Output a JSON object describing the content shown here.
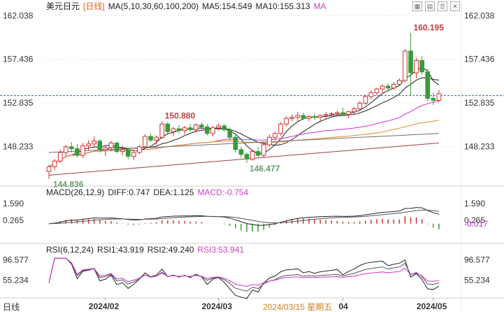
{
  "header": {
    "title": "美元日元",
    "period": "[日线]",
    "ma_params": "MA(5,10,30,60,100,200)",
    "ma5": "MA5:154.549",
    "ma10": "MA10:155.313",
    "ma_more": "MA"
  },
  "macd_header": {
    "label": "MACD(26,12,9)",
    "diff": "DIFF:0.747",
    "dea": "DEA:1.125",
    "macd": "MACD:-0.754"
  },
  "rsi_header": {
    "label": "RSI(6,12,24)",
    "rsi1": "RSI1:43.919",
    "rsi2": "RSI2:49.240",
    "rsi3": "RSI3:53.941"
  },
  "footer": {
    "period_button": "日线",
    "cursor_date": "2024/03/15 星期五"
  },
  "icons": [
    "grid-icon",
    "grid-alt-icon",
    "list-icon",
    "close-icon"
  ],
  "colors": {
    "up": "#d03030",
    "down": "#3a9a3a",
    "ma_dark": "#222222",
    "ma_magenta": "#d030d0",
    "ma_orange": "#e08a20",
    "ma_gray": "#707070",
    "ma_brown": "#a04040",
    "current_price_line": "#3060c0"
  },
  "chart_data": [
    {
      "type": "candlestick",
      "title": "美元日元 [日线]",
      "price_ticks": [
        "162.038",
        "157.436",
        "152.835",
        "148.233"
      ],
      "price_ylim": [
        144.2,
        162.8
      ],
      "x_ticks": [
        "2024/02",
        "2024/03",
        "04",
        "2024/05"
      ],
      "annotations": [
        {
          "label": "160.195",
          "value": 160.195
        },
        {
          "label": "150.880",
          "value": 150.88
        },
        {
          "label": "146.477",
          "value": 146.477
        },
        {
          "label": "144.836",
          "value": 144.836
        }
      ],
      "current_price": 153.6,
      "ohlc": [
        [
          145.6,
          146.3,
          144.8,
          146.1
        ],
        [
          146.1,
          146.9,
          145.7,
          146.7
        ],
        [
          146.7,
          147.9,
          146.5,
          147.6
        ],
        [
          147.6,
          148.4,
          147.2,
          148.2
        ],
        [
          148.2,
          148.7,
          147.6,
          148.0
        ],
        [
          148.0,
          148.5,
          147.1,
          147.3
        ],
        [
          147.3,
          148.6,
          147.0,
          148.3
        ],
        [
          148.3,
          148.9,
          147.8,
          148.5
        ],
        [
          148.5,
          149.3,
          148.2,
          148.8
        ],
        [
          148.8,
          149.0,
          147.6,
          147.9
        ],
        [
          147.9,
          148.4,
          147.2,
          148.1
        ],
        [
          148.1,
          148.8,
          147.7,
          148.6
        ],
        [
          148.6,
          148.7,
          147.5,
          147.7
        ],
        [
          147.7,
          148.3,
          147.3,
          147.9
        ],
        [
          147.9,
          148.1,
          146.9,
          147.2
        ],
        [
          147.2,
          147.9,
          146.8,
          147.6
        ],
        [
          147.6,
          148.4,
          147.4,
          148.2
        ],
        [
          148.2,
          149.5,
          148.0,
          149.3
        ],
        [
          149.3,
          149.6,
          148.7,
          148.9
        ],
        [
          148.9,
          149.4,
          148.4,
          149.2
        ],
        [
          149.2,
          150.9,
          149.0,
          150.6
        ],
        [
          150.6,
          150.8,
          149.6,
          149.8
        ],
        [
          149.8,
          150.3,
          149.3,
          150.1
        ],
        [
          150.1,
          150.5,
          149.6,
          149.9
        ],
        [
          149.9,
          150.4,
          149.5,
          150.2
        ],
        [
          150.2,
          150.6,
          149.8,
          150.0
        ],
        [
          150.0,
          150.7,
          149.7,
          150.5
        ],
        [
          150.5,
          150.8,
          150.0,
          150.3
        ],
        [
          150.3,
          150.6,
          149.4,
          149.6
        ],
        [
          149.6,
          150.4,
          149.3,
          150.2
        ],
        [
          150.2,
          150.7,
          149.9,
          150.4
        ],
        [
          150.4,
          150.6,
          149.8,
          150.0
        ],
        [
          150.0,
          150.2,
          148.9,
          149.2
        ],
        [
          149.2,
          149.5,
          147.6,
          147.9
        ],
        [
          147.9,
          148.2,
          147.0,
          147.4
        ],
        [
          147.4,
          147.6,
          146.5,
          146.9
        ],
        [
          146.9,
          147.9,
          146.7,
          147.7
        ],
        [
          147.7,
          148.2,
          147.1,
          147.3
        ],
        [
          147.3,
          148.6,
          147.1,
          148.4
        ],
        [
          148.4,
          149.5,
          148.2,
          149.2
        ],
        [
          149.2,
          149.8,
          148.9,
          149.6
        ],
        [
          149.6,
          150.8,
          149.4,
          150.6
        ],
        [
          150.6,
          151.4,
          150.3,
          151.2
        ],
        [
          151.2,
          151.6,
          150.9,
          151.3
        ],
        [
          151.3,
          151.9,
          150.8,
          151.5
        ],
        [
          151.5,
          151.8,
          151.0,
          151.2
        ],
        [
          151.2,
          151.5,
          150.9,
          151.4
        ],
        [
          151.4,
          151.7,
          151.0,
          151.3
        ],
        [
          151.3,
          151.6,
          150.9,
          151.5
        ],
        [
          151.5,
          151.9,
          151.2,
          151.6
        ],
        [
          151.6,
          151.9,
          151.3,
          151.7
        ],
        [
          151.7,
          152.0,
          151.4,
          151.8
        ],
        [
          151.8,
          152.3,
          151.5,
          151.6
        ],
        [
          151.6,
          152.0,
          151.2,
          151.9
        ],
        [
          151.9,
          152.4,
          151.7,
          152.2
        ],
        [
          152.2,
          153.0,
          152.0,
          152.8
        ],
        [
          152.8,
          153.7,
          152.6,
          153.5
        ],
        [
          153.5,
          154.2,
          153.2,
          153.9
        ],
        [
          153.9,
          154.4,
          153.6,
          154.3
        ],
        [
          154.3,
          154.8,
          153.9,
          154.6
        ],
        [
          154.6,
          154.9,
          154.0,
          154.4
        ],
        [
          154.4,
          155.0,
          154.2,
          154.8
        ],
        [
          154.8,
          155.4,
          154.6,
          155.2
        ],
        [
          155.2,
          158.5,
          155.0,
          158.3
        ],
        [
          158.3,
          160.2,
          153.6,
          156.0
        ],
        [
          156.0,
          157.6,
          155.4,
          157.3
        ],
        [
          157.3,
          157.8,
          155.8,
          156.1
        ],
        [
          156.1,
          156.4,
          153.0,
          153.3
        ],
        [
          153.3,
          153.9,
          152.6,
          153.1
        ],
        [
          153.1,
          154.2,
          152.9,
          153.8
        ]
      ],
      "ma_series": [
        {
          "name": "MA5",
          "end_value": 154.549
        },
        {
          "name": "MA10",
          "end_value": 155.313
        }
      ]
    },
    {
      "type": "bar",
      "title": "MACD(26,12,9)",
      "y_ticks": [
        "1.590",
        "0.265",
        "-0.017"
      ],
      "ylim": [
        -1.35,
        2.2
      ],
      "series": [
        {
          "name": "DIFF",
          "last": 0.747
        },
        {
          "name": "DEA",
          "last": 1.125
        },
        {
          "name": "MACD",
          "last": -0.754
        }
      ]
    },
    {
      "type": "line",
      "title": "RSI(6,12,24)",
      "y_ticks": [
        "96.577",
        "55.234"
      ],
      "ylim": [
        28,
        110
      ],
      "series": [
        {
          "name": "RSI1",
          "last": 43.919
        },
        {
          "name": "RSI2",
          "last": 49.24
        },
        {
          "name": "RSI3",
          "last": 53.941
        }
      ]
    }
  ]
}
